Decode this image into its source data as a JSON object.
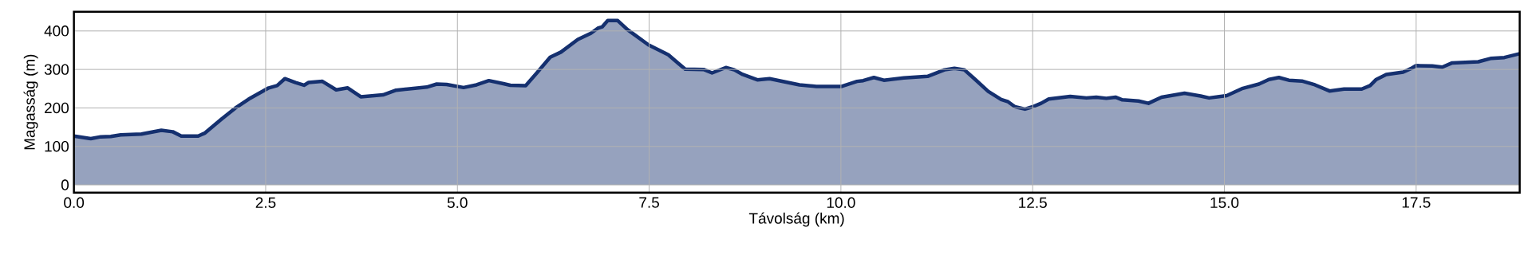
{
  "chart_data": {
    "type": "area",
    "xlabel": "Távolság (km)",
    "ylabel": "Magasság (m)",
    "x": [
      0,
      0.22,
      0.35,
      0.48,
      0.61,
      0.88,
      1.14,
      1.29,
      1.4,
      1.62,
      1.71,
      1.93,
      2.1,
      2.28,
      2.54,
      2.65,
      2.75,
      2.89,
      3.0,
      3.06,
      3.24,
      3.42,
      3.57,
      3.74,
      4.03,
      4.2,
      4.6,
      4.73,
      4.86,
      5.08,
      5.25,
      5.41,
      5.6,
      5.69,
      5.89,
      6.04,
      6.21,
      6.35,
      6.57,
      6.74,
      6.83,
      6.89,
      6.96,
      7.09,
      7.22,
      7.31,
      7.49,
      7.62,
      7.75,
      7.88,
      7.97,
      8.21,
      8.32,
      8.5,
      8.61,
      8.72,
      8.91,
      9.07,
      9.46,
      9.68,
      10.01,
      10.21,
      10.29,
      10.43,
      10.56,
      10.82,
      11.13,
      11.35,
      11.48,
      11.61,
      11.74,
      11.92,
      12.09,
      12.18,
      12.27,
      12.4,
      12.5,
      12.61,
      12.71,
      12.99,
      13.2,
      13.33,
      13.46,
      13.58,
      13.67,
      13.88,
      14.01,
      14.18,
      14.48,
      14.69,
      14.8,
      15.03,
      15.24,
      15.45,
      15.58,
      15.71,
      15.84,
      16.01,
      16.18,
      16.37,
      16.56,
      16.79,
      16.9,
      16.98,
      17.11,
      17.33,
      17.43,
      17.5,
      17.71,
      17.84,
      17.97,
      18.31,
      18.48,
      18.65,
      18.85
    ],
    "values": [
      127,
      120,
      125,
      126,
      130,
      132,
      142,
      138,
      127,
      127,
      135,
      172,
      199,
      223,
      252,
      258,
      276,
      266,
      259,
      266,
      269,
      247,
      252,
      229,
      234,
      246,
      254,
      262,
      261,
      253,
      260,
      271,
      263,
      259,
      258,
      292,
      332,
      345,
      378,
      394,
      407,
      411,
      427,
      427,
      403,
      390,
      364,
      351,
      338,
      316,
      301,
      300,
      291,
      305,
      299,
      287,
      273,
      276,
      260,
      256,
      256,
      269,
      271,
      279,
      272,
      278,
      282,
      299,
      303,
      299,
      276,
      243,
      222,
      216,
      203,
      197,
      203,
      212,
      223,
      230,
      226,
      228,
      225,
      228,
      221,
      218,
      212,
      228,
      238,
      231,
      226,
      232,
      251,
      262,
      274,
      279,
      272,
      270,
      260,
      244,
      249,
      249,
      258,
      274,
      287,
      293,
      302,
      310,
      309,
      306,
      317,
      320,
      329,
      331,
      341
    ],
    "color": "#15306f",
    "xlim": [
      0,
      18.85
    ],
    "ylim": [
      -20,
      450
    ],
    "xticks": [
      {
        "value": 0,
        "label": "0.0"
      },
      {
        "value": 2.5,
        "label": "2.5"
      },
      {
        "value": 5,
        "label": "5.0"
      },
      {
        "value": 7.5,
        "label": "7.5"
      },
      {
        "value": 10,
        "label": "10.0"
      },
      {
        "value": 12.5,
        "label": "12.5"
      },
      {
        "value": 15,
        "label": "15.0"
      },
      {
        "value": 17.5,
        "label": "17.5"
      }
    ],
    "yticks": [
      0,
      100,
      200,
      300,
      400
    ],
    "grid": true
  }
}
